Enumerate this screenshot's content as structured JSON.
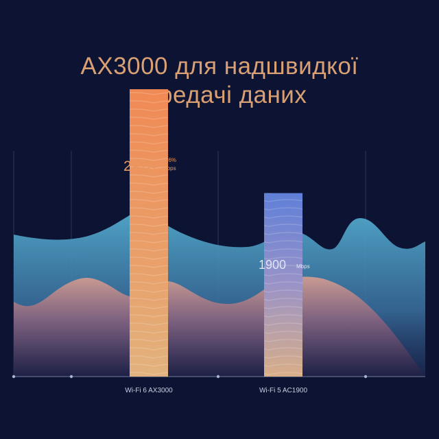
{
  "header": {
    "title_line1": "AX3000 для надшвидкої",
    "title_line2": "передачі даних"
  },
  "colors": {
    "background": "#0d1433",
    "title": "#d9a074",
    "wifi6_bar": "#e8925a",
    "wifi5_bar": "#6f86d6",
    "wave_top": "#4aa0c4",
    "wave_bottom": "#c9978f"
  },
  "chart_data": {
    "type": "bar",
    "categories": [
      "Wi-Fi 6 AX3000",
      "Wi-Fi 5 AC1900"
    ],
    "values": [
      2976,
      1900
    ],
    "unit": "Mbps",
    "annotations": [
      {
        "category": "Wi-Fi 6 AX3000",
        "value_label": "2976",
        "unit_label": "Mbps",
        "delta_label": "↑56%"
      },
      {
        "category": "Wi-Fi 5 AC1900",
        "value_label": "1900",
        "unit_label": "Mbps"
      }
    ],
    "ylim": [
      0,
      3900
    ],
    "title": "",
    "xlabel": "",
    "ylabel": ""
  }
}
